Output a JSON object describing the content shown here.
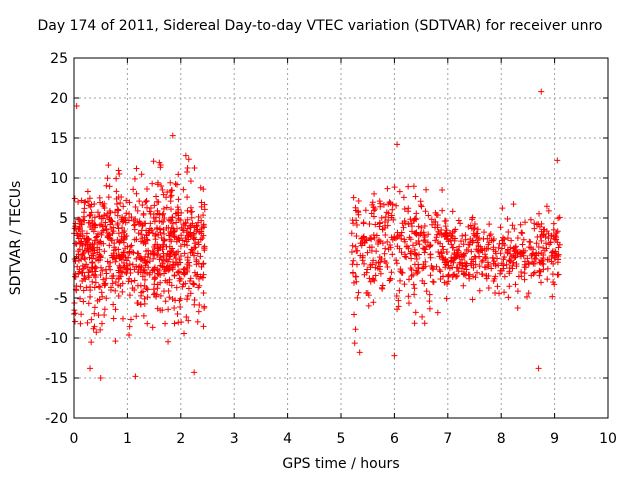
{
  "chart_data": {
    "type": "scatter",
    "title": "Day 174 of 2011, Sidereal Day-to-day VTEC variation (SDTVAR) for receiver unro",
    "xlabel": "GPS time / hours",
    "ylabel": "SDTVAR / TECUs",
    "xlim": [
      0,
      10
    ],
    "ylim": [
      -20,
      25
    ],
    "xticks": [
      0,
      1,
      2,
      3,
      4,
      5,
      6,
      7,
      8,
      9,
      10
    ],
    "yticks": [
      -20,
      -15,
      -10,
      -5,
      0,
      5,
      10,
      15,
      20,
      25
    ],
    "grid": true,
    "marker": "+",
    "color": "#ff0000",
    "series": [
      {
        "name": "SDTVAR",
        "clusters": [
          {
            "x_range": [
              0.0,
              2.45
            ],
            "center_y": 1.0,
            "spread": 4.2,
            "count": 900
          },
          {
            "x_range": [
              5.2,
              6.9
            ],
            "center_y": 1.0,
            "spread": 3.5,
            "count": 330
          },
          {
            "x_range": [
              6.9,
              9.1
            ],
            "center_y": 0.5,
            "spread": 2.3,
            "count": 420
          }
        ],
        "notable_points": [
          {
            "x": 0.05,
            "y": 19.0
          },
          {
            "x": 8.75,
            "y": 20.8
          },
          {
            "x": 1.85,
            "y": 15.3
          },
          {
            "x": 6.05,
            "y": 14.2
          },
          {
            "x": 9.05,
            "y": 12.2
          },
          {
            "x": 0.5,
            "y": -15.0
          },
          {
            "x": 0.3,
            "y": -13.8
          },
          {
            "x": 1.15,
            "y": -14.8
          },
          {
            "x": 2.25,
            "y": -14.3
          },
          {
            "x": 5.35,
            "y": -11.8
          },
          {
            "x": 6.0,
            "y": -12.2
          },
          {
            "x": 8.7,
            "y": -13.8
          },
          {
            "x": 0.0,
            "y": -7.0
          }
        ]
      }
    ]
  }
}
